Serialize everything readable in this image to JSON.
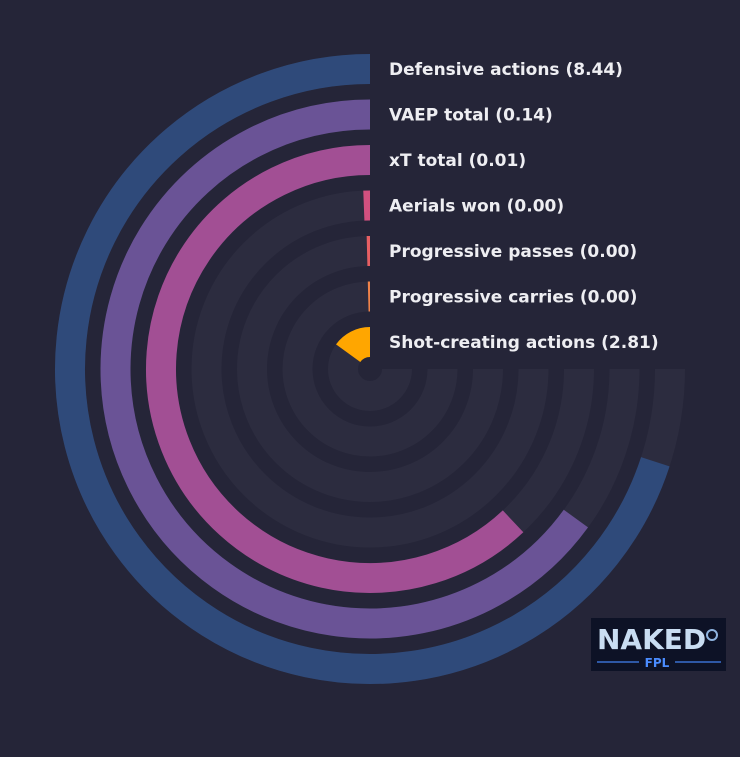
{
  "chart_data": {
    "type": "radial-bar",
    "title": "",
    "series": [
      {
        "label": "Defensive actions (8.44)",
        "name": "Defensive actions",
        "value": 8.44,
        "fraction": 0.7,
        "color": "#2f4a7a"
      },
      {
        "label": "VAEP total (0.14)",
        "name": "VAEP total",
        "value": 0.14,
        "fraction": 0.65,
        "color": "#6a5396"
      },
      {
        "label": "xT total (0.01)",
        "name": "xT total",
        "value": 0.01,
        "fraction": 0.62,
        "color": "#a24f94"
      },
      {
        "label": "Aerials won (0.00)",
        "name": "Aerials won",
        "value": 0.0,
        "fraction": 0.006,
        "color": "#d1507f"
      },
      {
        "label": "Progressive passes (0.00)",
        "name": "Progressive passes",
        "value": 0.0,
        "fraction": 0.004,
        "color": "#e75f63"
      },
      {
        "label": "Progressive carries (0.00)",
        "name": "Progressive carries",
        "value": 0.0,
        "fraction": 0.004,
        "color": "#f0834a"
      },
      {
        "label": "Shot-creating actions (2.81)",
        "name": "Shot-creating actions",
        "value": 2.81,
        "fraction": 0.15,
        "color": "#ffa600"
      }
    ],
    "track_color": "#2c2c3f",
    "grid": false,
    "legend": "none"
  },
  "logo": {
    "text": "NAKED",
    "subtext": "FPL",
    "icon": "naked-fpl-logo"
  }
}
